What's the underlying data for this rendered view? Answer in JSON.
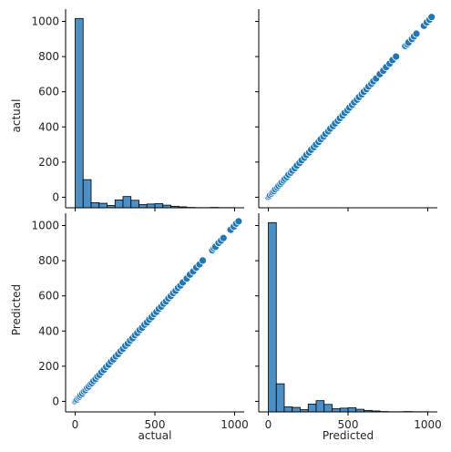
{
  "chart_data": {
    "type": "pairplot",
    "variables": [
      "actual",
      "Predicted"
    ],
    "colors": {
      "mark": "#1f77b4",
      "bar": "#4c8fc4",
      "axis": "#000000",
      "text": "#262626"
    },
    "axis_labels": {
      "x": [
        "actual",
        "Predicted"
      ],
      "y": [
        "actual",
        "Predicted"
      ]
    },
    "x_ticks": [
      0,
      500,
      1000
    ],
    "y_ticks": [
      0,
      200,
      400,
      600,
      800,
      1000
    ],
    "xlim": [
      -60,
      1060
    ],
    "ylim": [
      -60,
      1070
    ],
    "histograms": [
      {
        "variable": "actual",
        "bin_edges": [
          0,
          50,
          100,
          150,
          200,
          250,
          300,
          350,
          400,
          450,
          500,
          550,
          600,
          650,
          700,
          750,
          800,
          850,
          900,
          950,
          1000,
          1050
        ],
        "counts": [
          1010,
          150,
          27,
          24,
          12,
          42,
          60,
          40,
          17,
          20,
          22,
          14,
          8,
          5,
          2,
          1,
          1,
          2,
          1,
          1,
          0
        ],
        "count_max": 1060
      },
      {
        "variable": "Predicted",
        "bin_edges": [
          0,
          50,
          100,
          150,
          200,
          250,
          300,
          350,
          400,
          450,
          500,
          550,
          600,
          650,
          700,
          750,
          800,
          850,
          900,
          950,
          1000,
          1050
        ],
        "counts": [
          1010,
          150,
          27,
          24,
          12,
          42,
          60,
          40,
          17,
          20,
          22,
          14,
          8,
          5,
          2,
          1,
          1,
          2,
          1,
          1,
          0
        ],
        "count_max": 1060
      }
    ],
    "scatter_points": [
      [
        0,
        0
      ],
      [
        5,
        6
      ],
      [
        12,
        11
      ],
      [
        20,
        21
      ],
      [
        28,
        27
      ],
      [
        35,
        36
      ],
      [
        45,
        44
      ],
      [
        55,
        56
      ],
      [
        65,
        64
      ],
      [
        75,
        76
      ],
      [
        85,
        84
      ],
      [
        95,
        96
      ],
      [
        105,
        104
      ],
      [
        115,
        116
      ],
      [
        128,
        127
      ],
      [
        140,
        141
      ],
      [
        152,
        151
      ],
      [
        165,
        166
      ],
      [
        180,
        179
      ],
      [
        195,
        196
      ],
      [
        210,
        209
      ],
      [
        225,
        226
      ],
      [
        240,
        239
      ],
      [
        255,
        256
      ],
      [
        270,
        269
      ],
      [
        285,
        286
      ],
      [
        300,
        299
      ],
      [
        315,
        316
      ],
      [
        330,
        329
      ],
      [
        345,
        346
      ],
      [
        360,
        359
      ],
      [
        375,
        376
      ],
      [
        390,
        389
      ],
      [
        405,
        406
      ],
      [
        420,
        419
      ],
      [
        435,
        436
      ],
      [
        450,
        449
      ],
      [
        465,
        466
      ],
      [
        480,
        479
      ],
      [
        495,
        496
      ],
      [
        510,
        509
      ],
      [
        525,
        526
      ],
      [
        540,
        539
      ],
      [
        555,
        556
      ],
      [
        570,
        569
      ],
      [
        585,
        586
      ],
      [
        600,
        599
      ],
      [
        615,
        616
      ],
      [
        630,
        629
      ],
      [
        645,
        646
      ],
      [
        660,
        659
      ],
      [
        675,
        676
      ],
      [
        700,
        699
      ],
      [
        720,
        721
      ],
      [
        740,
        739
      ],
      [
        760,
        761
      ],
      [
        780,
        779
      ],
      [
        800,
        801
      ],
      [
        860,
        859
      ],
      [
        870,
        871
      ],
      [
        880,
        879
      ],
      [
        900,
        901
      ],
      [
        915,
        914
      ],
      [
        930,
        929
      ],
      [
        975,
        976
      ],
      [
        995,
        994
      ],
      [
        1010,
        1011
      ],
      [
        1025,
        1024
      ]
    ]
  }
}
